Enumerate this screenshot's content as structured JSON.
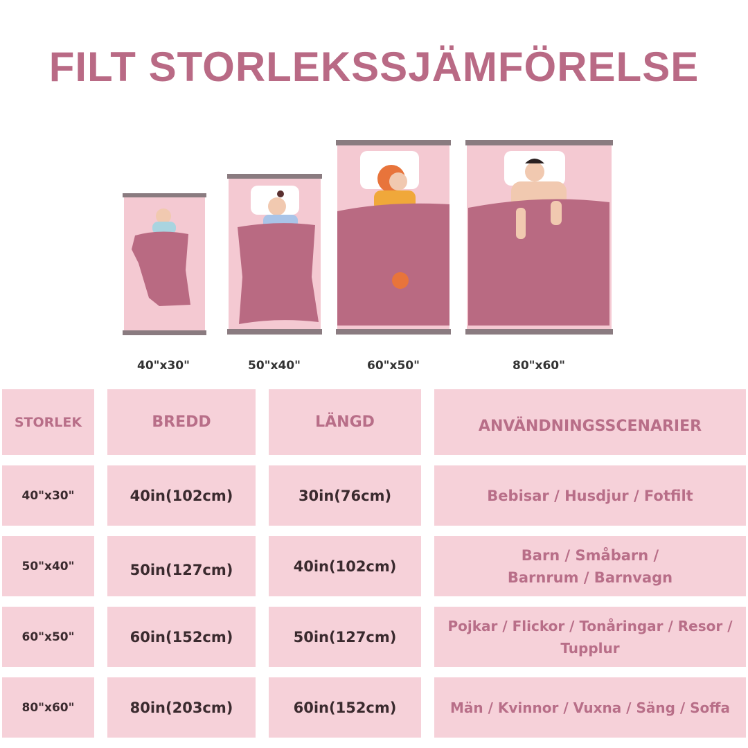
{
  "title": "FILT STORLEKSSJÄMFÖRELSE",
  "colors": {
    "title": "#b96a85",
    "cell": "#f6d1d9",
    "blanket": "#b96a82",
    "bed": "#f4c9d2"
  },
  "illustrations": [
    "baby-icon",
    "child-icon",
    "woman-icon",
    "man-icon"
  ],
  "size_labels": [
    "40\"x30\"",
    "50\"x40\"",
    "60\"x50\"",
    "80\"x60\""
  ],
  "table": {
    "headers": [
      "STORLEK",
      "BREDD",
      "LÄNGD",
      "ANVÄNDNINGSSCENARIER"
    ],
    "rows": [
      [
        "40\"x30\"",
        "40in(102cm)",
        "30in(76cm)",
        "Bebisar / Husdjur / Fotfilt"
      ],
      [
        "50\"x40\"",
        "50in(127cm)",
        "40in(102cm)",
        "Barn / Småbarn / Barnrum / Barnvagn"
      ],
      [
        "60\"x50\"",
        "60in(152cm)",
        "50in(127cm)",
        "Pojkar / Flickor / Tonåringar / Resor / Tupplur"
      ],
      [
        "80\"x60\"",
        "80in(203cm)",
        "60in(152cm)",
        "Män / Kvinnor / Vuxna / Säng / Soffa"
      ]
    ]
  }
}
